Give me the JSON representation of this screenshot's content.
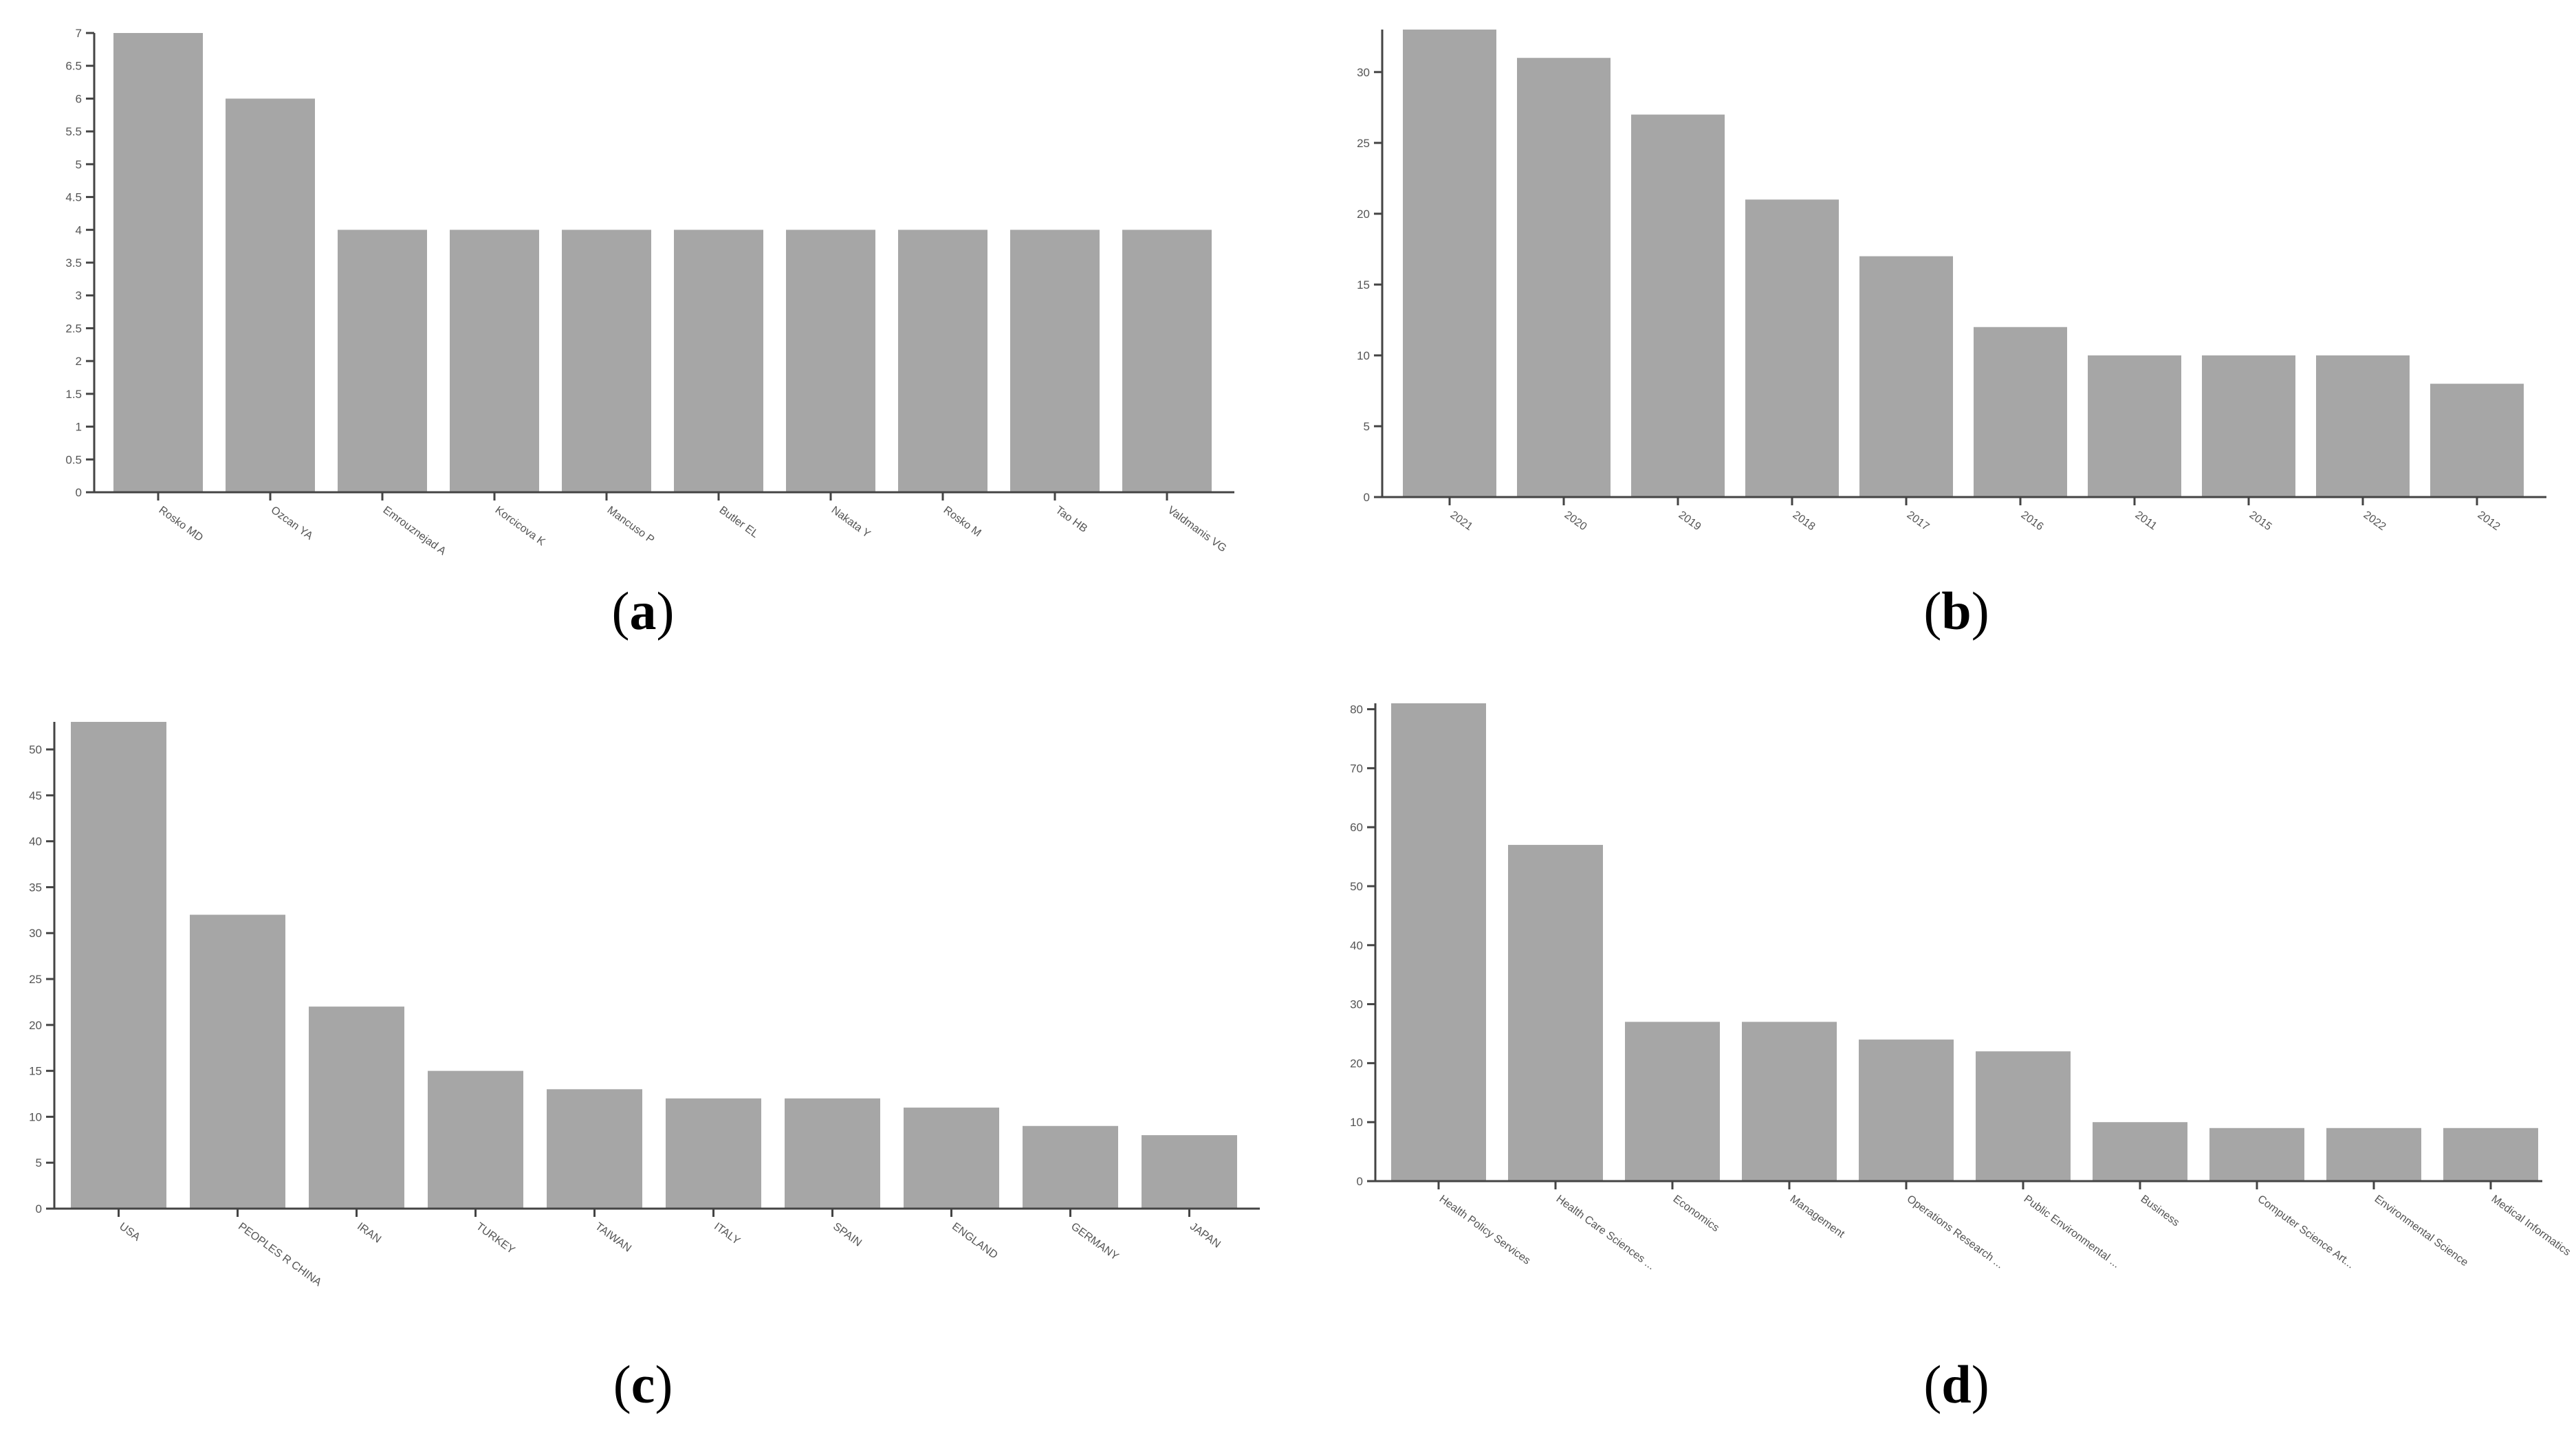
{
  "colors": {
    "bar": "#a6a6a6",
    "axis": "#444444",
    "tick_text": "#555555"
  },
  "panels": [
    {
      "label": "a",
      "label_open": "(",
      "label_close": ")"
    },
    {
      "label": "b",
      "label_open": "(",
      "label_close": ")"
    },
    {
      "label": "c",
      "label_open": "(",
      "label_close": ")"
    },
    {
      "label": "d",
      "label_open": "(",
      "label_close": ")"
    }
  ],
  "chart_data": [
    {
      "type": "bar",
      "title": "",
      "xlabel": "",
      "ylabel": "",
      "categories": [
        "Rosko MD",
        "Ozcan YA",
        "Emrouznejad A",
        "Korcicova K",
        "Mancuso P",
        "Butler EL",
        "Nakata Y",
        "Rosko M",
        "Tao HB",
        "Valdmanis VG"
      ],
      "values": [
        7,
        6,
        4,
        4,
        4,
        4,
        4,
        4,
        4,
        4
      ],
      "ylim": [
        0,
        7
      ],
      "yticks": [
        0,
        0.5,
        1,
        1.5,
        2,
        2.5,
        3,
        3.5,
        4,
        4.5,
        5,
        5.5,
        6,
        6.5,
        7
      ],
      "grid": false
    },
    {
      "type": "bar",
      "title": "",
      "xlabel": "",
      "ylabel": "",
      "categories": [
        "2021",
        "2020",
        "2019",
        "2018",
        "2017",
        "2016",
        "2011",
        "2015",
        "2022",
        "2012"
      ],
      "values": [
        33,
        31,
        27,
        21,
        17,
        12,
        10,
        10,
        10,
        8
      ],
      "ylim": [
        0,
        33
      ],
      "yticks": [
        0,
        5,
        10,
        15,
        20,
        25,
        30
      ],
      "grid": false
    },
    {
      "type": "bar",
      "title": "",
      "xlabel": "",
      "ylabel": "",
      "categories": [
        "USA",
        "PEOPLES R CHINA",
        "IRAN",
        "TURKEY",
        "TAIWAN",
        "ITALY",
        "SPAIN",
        "ENGLAND",
        "GERMANY",
        "JAPAN"
      ],
      "values": [
        53,
        32,
        22,
        15,
        13,
        12,
        12,
        11,
        9,
        8
      ],
      "ylim": [
        0,
        53
      ],
      "yticks": [
        0,
        5,
        10,
        15,
        20,
        25,
        30,
        35,
        40,
        45,
        50
      ],
      "grid": false
    },
    {
      "type": "bar",
      "title": "",
      "xlabel": "",
      "ylabel": "",
      "categories": [
        "Health Policy Services",
        "Health Care Sciences ...",
        "Economics",
        "Management",
        "Operations Research ...",
        "Public Environmental ...",
        "Business",
        "Computer Science Art...",
        "Environmental Science",
        "Medical Informatics"
      ],
      "values": [
        81,
        57,
        27,
        27,
        24,
        22,
        10,
        9,
        9,
        9
      ],
      "ylim": [
        0,
        81
      ],
      "yticks": [
        0,
        10,
        20,
        30,
        40,
        50,
        60,
        70,
        80
      ],
      "grid": false
    }
  ]
}
